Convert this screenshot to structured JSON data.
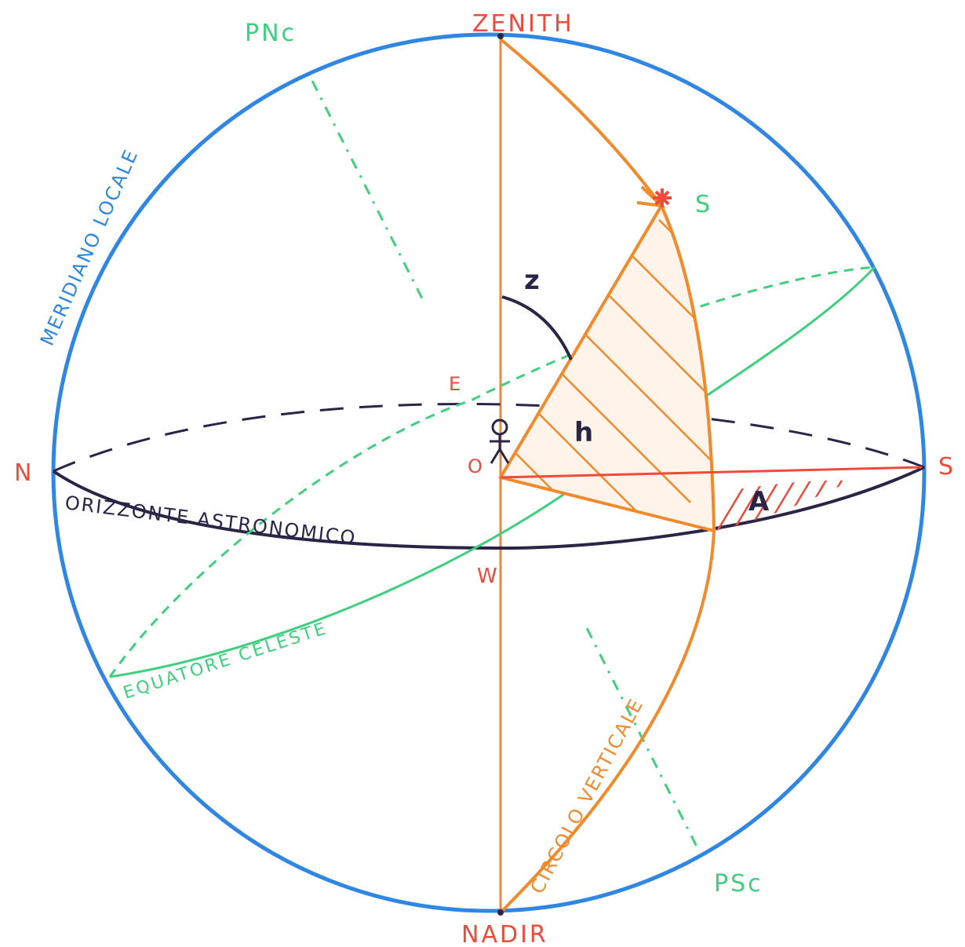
{
  "labels": {
    "zenith": "ZENITH",
    "nadir": "NADIR",
    "pnc": "PNc",
    "psc": "PSc",
    "north": "N",
    "south": "S",
    "east": "E",
    "west": "W",
    "observer": "O",
    "star": "S",
    "zenith_distance": "z",
    "altitude": "h",
    "azimuth": "A",
    "local_meridian": "MERIDIANO LOCALE",
    "astronomical_horizon": "ORIZZONTE ASTRONOMICO",
    "celestial_equator": "EQUATORE CELESTE",
    "vertical_circle": "CIRCOLO VERTICALE"
  },
  "colors": {
    "meridian": "#2f86e3",
    "horizon": "#2a2547",
    "equator": "#3fcf7e",
    "vertical": "#f28a2c",
    "cardinal": "#ef4a3a",
    "poles": "#3fcf7e"
  }
}
